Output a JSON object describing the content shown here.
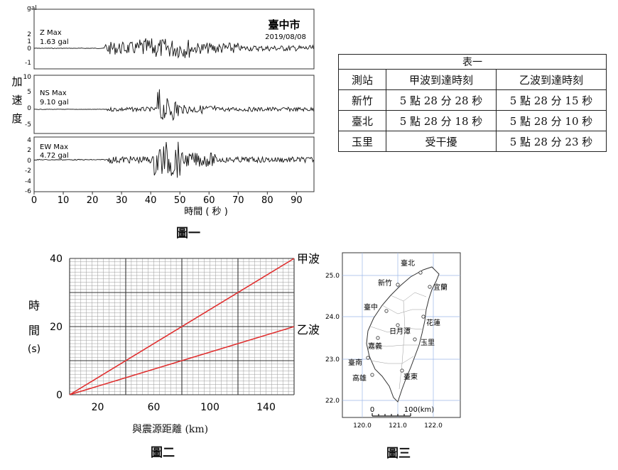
{
  "fig1": {
    "caption": "圖一",
    "unit_label": "gal",
    "city": "臺中市",
    "date": "2019/08/08",
    "ylabel_chars": [
      "加",
      "速",
      "度"
    ],
    "xlabel": "時間 ( 秒 )",
    "x_ticks": [
      "0",
      "10",
      "20",
      "30",
      "40",
      "50",
      "60",
      "70",
      "80",
      "90"
    ],
    "panels": [
      {
        "component": "Z Max",
        "max": "1.63 gal",
        "ticks": [
          "2",
          "1",
          "0",
          "-1"
        ]
      },
      {
        "component": "NS Max",
        "max": "9.10 gal",
        "ticks": [
          "10",
          "5",
          "0",
          "-5"
        ]
      },
      {
        "component": "EW Max",
        "max": "4.72 gal",
        "ticks": [
          "4",
          "2",
          "0",
          "-2",
          "-4",
          "-6"
        ]
      }
    ]
  },
  "table1": {
    "caption": "表一",
    "headers": [
      "測站",
      "甲波到達時刻",
      "乙波到達時刻"
    ],
    "rows": [
      [
        "新竹",
        "5 點 28 分 28 秒",
        "5 點 28 分 15 秒"
      ],
      [
        "臺北",
        "5 點 28 分 18 秒",
        "5 點 28 分 10 秒"
      ],
      [
        "玉里",
        "受干擾",
        "5 點 28 分 23 秒"
      ]
    ]
  },
  "chart_data": {
    "type": "line",
    "ylabel_chars": [
      "時",
      "間",
      "(s)"
    ],
    "xlabel": "與震源距離 (km)",
    "x_ticks": [
      "20",
      "60",
      "100",
      "140"
    ],
    "y_ticks": [
      "0",
      "20",
      "40"
    ],
    "xlim": [
      0,
      160
    ],
    "ylim": [
      0,
      40
    ],
    "grid": true,
    "series": [
      {
        "name": "甲波",
        "x": [
          0,
          160
        ],
        "y": [
          0,
          40
        ],
        "color": "#e03030"
      },
      {
        "name": "乙波",
        "x": [
          0,
          160
        ],
        "y": [
          0,
          20
        ],
        "color": "#e03030"
      }
    ],
    "caption": "圖二"
  },
  "fig3": {
    "caption": "圖三",
    "lat_ticks": [
      "25.0",
      "24.0",
      "23.0",
      "22.0"
    ],
    "lon_ticks": [
      "120.0",
      "121.0",
      "122.0"
    ],
    "scale_start": "0",
    "scale_end": "100(km)",
    "cities": [
      "臺北",
      "新竹",
      "宜蘭",
      "臺中",
      "花蓮",
      "日月潭",
      "嘉義",
      "玉里",
      "臺南",
      "高雄",
      "臺東"
    ]
  }
}
